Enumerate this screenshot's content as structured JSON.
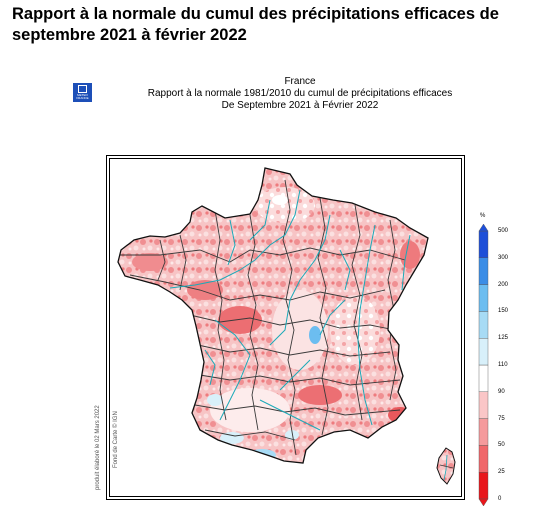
{
  "page": {
    "title": "Rapport à la normale du cumul des précipitations efficaces de septembre 2021 à février 2022"
  },
  "logo": {
    "text": "METEO FRANCE"
  },
  "caption": {
    "line1": "France",
    "line2": "Rapport à la normale 1981/2010 du cumul de précipitations efficaces",
    "line3": "De Septembre 2021 à Février 2022"
  },
  "credits": {
    "produced": "produit élaboré le 02 Mars 2022",
    "basemap": "Fond de Carte © IGN"
  },
  "legend": {
    "unit": "%",
    "levels": [
      "0",
      "25",
      "50",
      "75",
      "90",
      "110",
      "125",
      "150",
      "200",
      "300",
      "500"
    ],
    "colors": [
      "#e8161b",
      "#f0676a",
      "#f59a9c",
      "#fac6c7",
      "#fde6e6",
      "#ffffff",
      "#d8f0fa",
      "#a7dbf5",
      "#6cbdf0",
      "#3b8de6",
      "#1e4fd8"
    ]
  }
}
